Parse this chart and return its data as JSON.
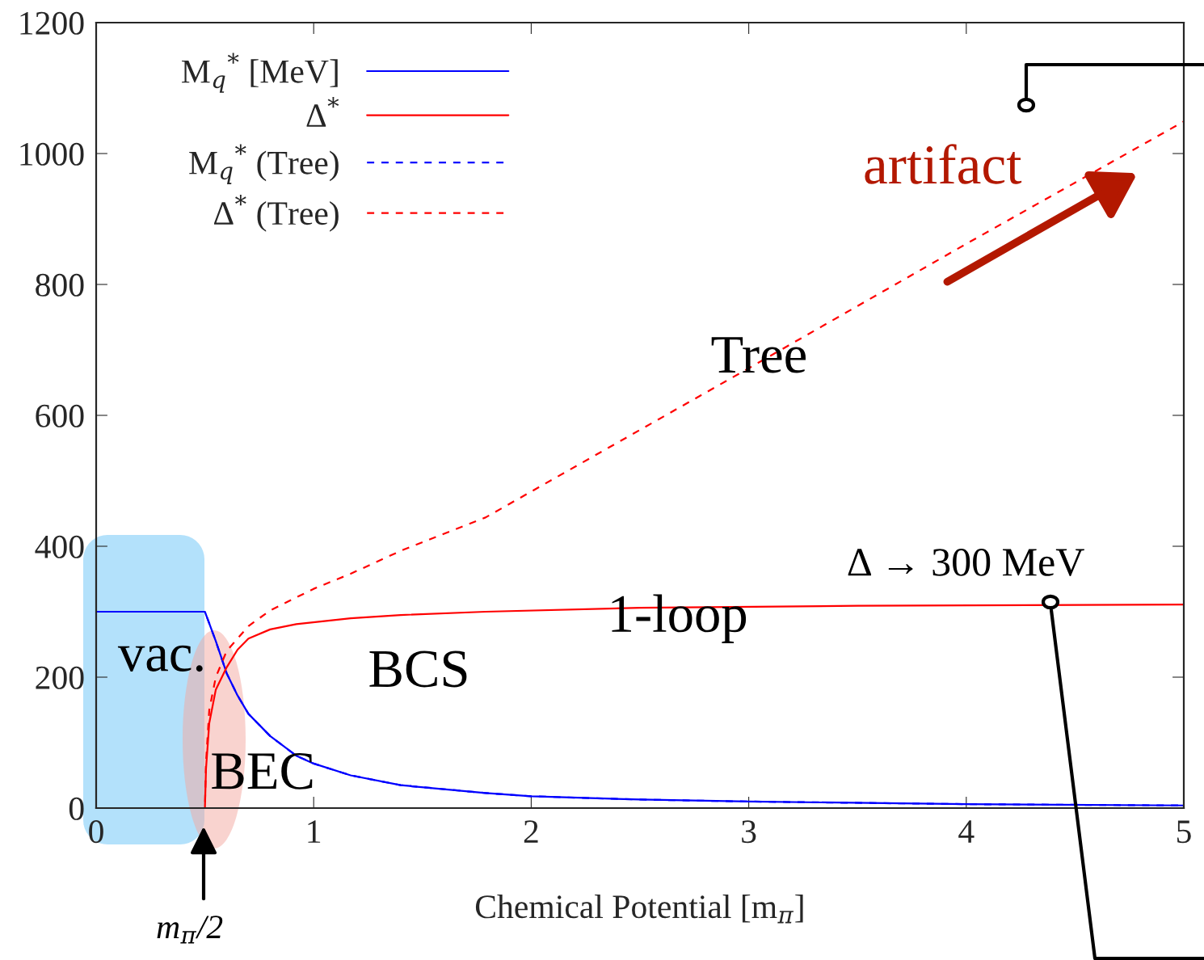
{
  "chart_data": {
    "type": "line",
    "xlabel": "Chemical Potential [m$_{π}$]",
    "xlim": [
      0,
      5
    ],
    "xticks": [
      0,
      1,
      2,
      3,
      4,
      5
    ],
    "ylim": [
      0,
      1200
    ],
    "yticks": [
      0,
      200,
      400,
      600,
      800,
      1000,
      1200
    ],
    "grid": false,
    "legend": "top left",
    "marker": "none",
    "series": [
      {
        "name": "M$_{q}$$^{*}$ [MeV]",
        "color": "#0000ff",
        "line_style": "solid",
        "x": [
          0,
          0.5,
          0.55,
          0.6,
          0.65,
          0.7,
          0.8,
          0.92,
          1.0,
          1.17,
          1.4,
          1.79,
          2.0,
          2.5,
          3.0,
          4.0,
          5.0
        ],
        "values": [
          300,
          300,
          255,
          206,
          172,
          144,
          110,
          80,
          68,
          50,
          35,
          23,
          18,
          13,
          10,
          6,
          4
        ]
      },
      {
        "name": "Δ$^{*}$",
        "color": "#ff0000",
        "line_style": "solid",
        "x": [
          0,
          0.5,
          0.505,
          0.52,
          0.55,
          0.6,
          0.65,
          0.7,
          0.8,
          0.92,
          1.17,
          1.4,
          1.79,
          2.5,
          3.5,
          5.0
        ],
        "values": [
          0,
          0,
          60,
          130,
          181,
          215,
          242,
          259,
          273,
          281,
          290,
          295,
          300,
          306,
          309,
          311
        ]
      },
      {
        "name": "M$_{q}$$^{*}$ (Tree)",
        "color": "#0000ff",
        "line_style": "dashed",
        "x": [
          0,
          0.5,
          0.55,
          0.6,
          0.65,
          0.7,
          0.8,
          0.92,
          1.0,
          1.17,
          1.4,
          1.79,
          2.0,
          2.5,
          3.0,
          4.0,
          5.0
        ],
        "values": [
          300,
          300,
          255,
          206,
          172,
          144,
          110,
          80,
          68,
          50,
          35,
          23,
          18,
          13,
          10,
          6,
          4
        ]
      },
      {
        "name": "Δ$^{*}$ (Tree)",
        "color": "#ff0000",
        "line_style": "dashed",
        "x": [
          0,
          0.5,
          0.505,
          0.52,
          0.55,
          0.6,
          0.7,
          0.8,
          1.0,
          1.17,
          1.4,
          1.79,
          3.0,
          4.0,
          5.0
        ],
        "values": [
          0,
          0,
          70,
          150,
          200,
          240,
          278,
          302,
          335,
          358,
          393,
          444,
          672,
          862,
          1049
        ]
      }
    ],
    "annotations": [
      "vac.",
      "BCS",
      "BEC",
      "Tree",
      "1-loop",
      "artifact",
      "Δ → 300 MeV",
      "m$_{π}$/2"
    ]
  }
}
